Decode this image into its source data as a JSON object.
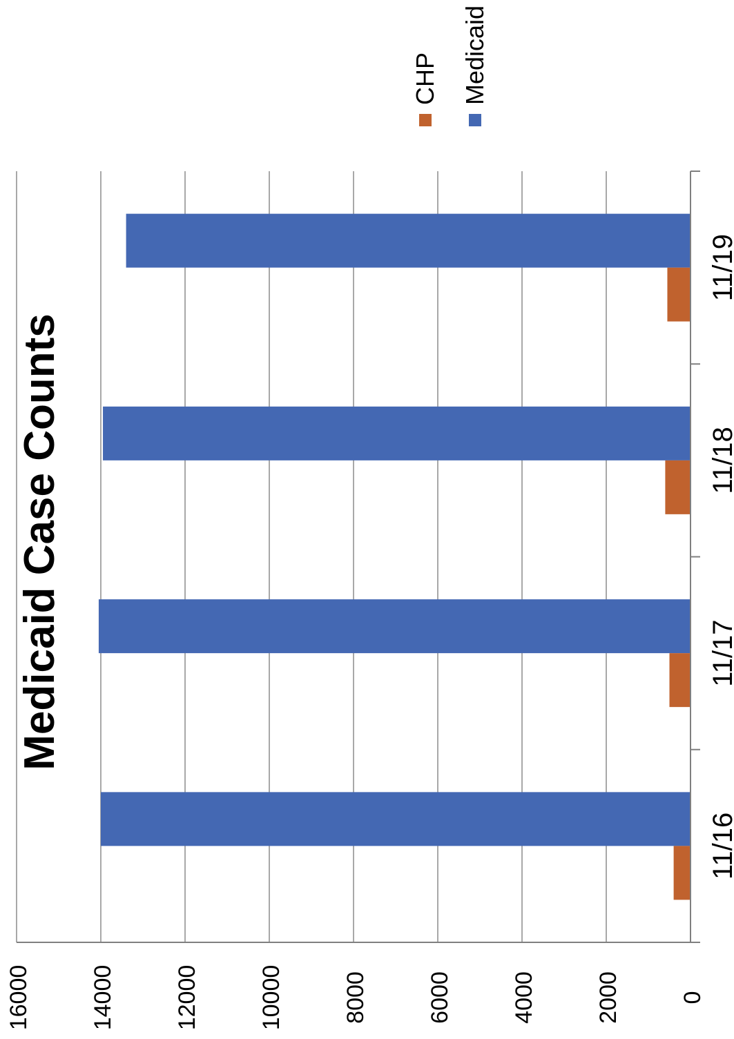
{
  "chart_data": {
    "type": "bar",
    "title": "Medicaid Case Counts",
    "categories": [
      "11/16",
      "11/17",
      "11/18",
      "11/19"
    ],
    "series": [
      {
        "name": "CHP",
        "color": "#c0622e",
        "values": [
          400,
          500,
          600,
          550
        ]
      },
      {
        "name": "Medicaid",
        "color": "#4468b3",
        "values": [
          14000,
          14050,
          13950,
          13400
        ]
      }
    ],
    "yticks": [
      "0",
      "2000",
      "4000",
      "6000",
      "8000",
      "10000",
      "12000",
      "14000",
      "16000"
    ],
    "ylim": [
      0,
      16000
    ],
    "orientation": "rotated 90° clockwise",
    "grid": true,
    "legend": "top-right"
  }
}
